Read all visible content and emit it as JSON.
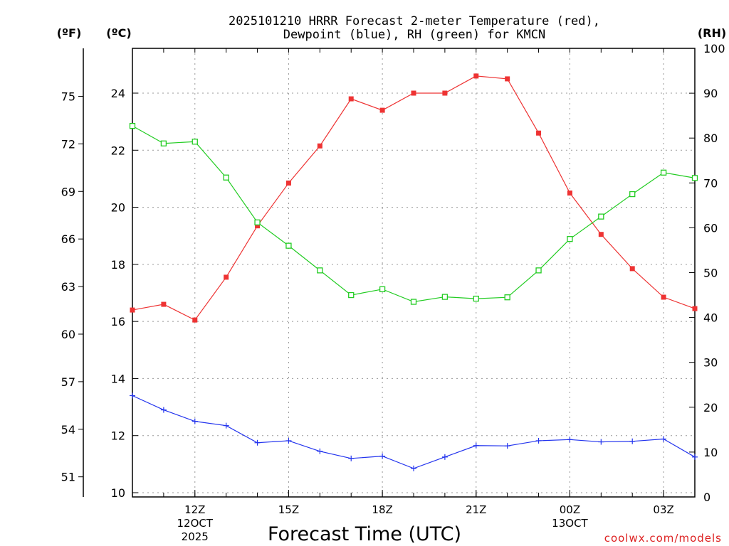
{
  "chart_data": {
    "type": "line",
    "title_line1": "2025101210 HRRR Forecast 2-meter Temperature (red),",
    "title_line2": "Dewpoint (blue), RH (green) for KMCN",
    "xlabel": "Forecast Time (UTC)",
    "watermark": "coolwx.com/models",
    "unit_labels": {
      "fahrenheit": "(ºF)",
      "celsius": "(ºC)",
      "rh": "(RH)"
    },
    "x_hours": [
      10,
      11,
      12,
      13,
      14,
      15,
      16,
      17,
      18,
      19,
      20,
      21,
      22,
      23,
      24,
      25,
      26,
      27,
      28
    ],
    "xlim": [
      10,
      28
    ],
    "ylim_c": [
      10,
      26
    ],
    "ylim_rh": [
      0,
      100
    ],
    "xticks": [
      {
        "h": 12,
        "label": "12Z",
        "sub1": "12OCT",
        "sub2": "2025"
      },
      {
        "h": 15,
        "label": "15Z",
        "sub1": "",
        "sub2": ""
      },
      {
        "h": 18,
        "label": "18Z",
        "sub1": "",
        "sub2": ""
      },
      {
        "h": 21,
        "label": "21Z",
        "sub1": "",
        "sub2": ""
      },
      {
        "h": 24,
        "label": "00Z",
        "sub1": "13OCT",
        "sub2": ""
      },
      {
        "h": 27,
        "label": "03Z",
        "sub1": "",
        "sub2": ""
      }
    ],
    "yticks_c": [
      "10",
      "12",
      "14",
      "16",
      "18",
      "20",
      "22",
      "24"
    ],
    "yticks_f": [
      "51",
      "54",
      "57",
      "60",
      "63",
      "66",
      "69",
      "72",
      "75"
    ],
    "yticks_rh": [
      "0",
      "10",
      "20",
      "30",
      "40",
      "50",
      "60",
      "70",
      "80",
      "90",
      "100"
    ],
    "series": [
      {
        "name": "2-meter Temperature",
        "unit": "°C",
        "color": "#ee3333",
        "marker": "filled-square",
        "values": [
          16.4,
          16.6,
          16.05,
          17.55,
          19.35,
          20.85,
          22.15,
          23.8,
          23.4,
          24.0,
          24.0,
          24.6,
          24.5,
          22.6,
          20.5,
          19.05,
          17.85,
          16.85,
          16.45
        ]
      },
      {
        "name": "Dewpoint",
        "unit": "°C",
        "color": "#2233ee",
        "marker": "plus",
        "values": [
          13.4,
          12.9,
          12.5,
          12.35,
          11.75,
          11.82,
          11.45,
          11.2,
          11.28,
          10.85,
          11.25,
          11.65,
          11.64,
          11.82,
          11.86,
          11.78,
          11.8,
          11.88,
          11.25
        ]
      },
      {
        "name": "RH",
        "unit": "%",
        "color": "#22cc22",
        "marker": "open-square",
        "values": [
          82.7,
          78.8,
          79.2,
          71.2,
          61.2,
          56.0,
          50.5,
          45.0,
          46.3,
          43.5,
          44.6,
          44.2,
          44.5,
          50.5,
          57.5,
          62.5,
          67.5,
          72.3,
          71.1
        ]
      }
    ]
  }
}
